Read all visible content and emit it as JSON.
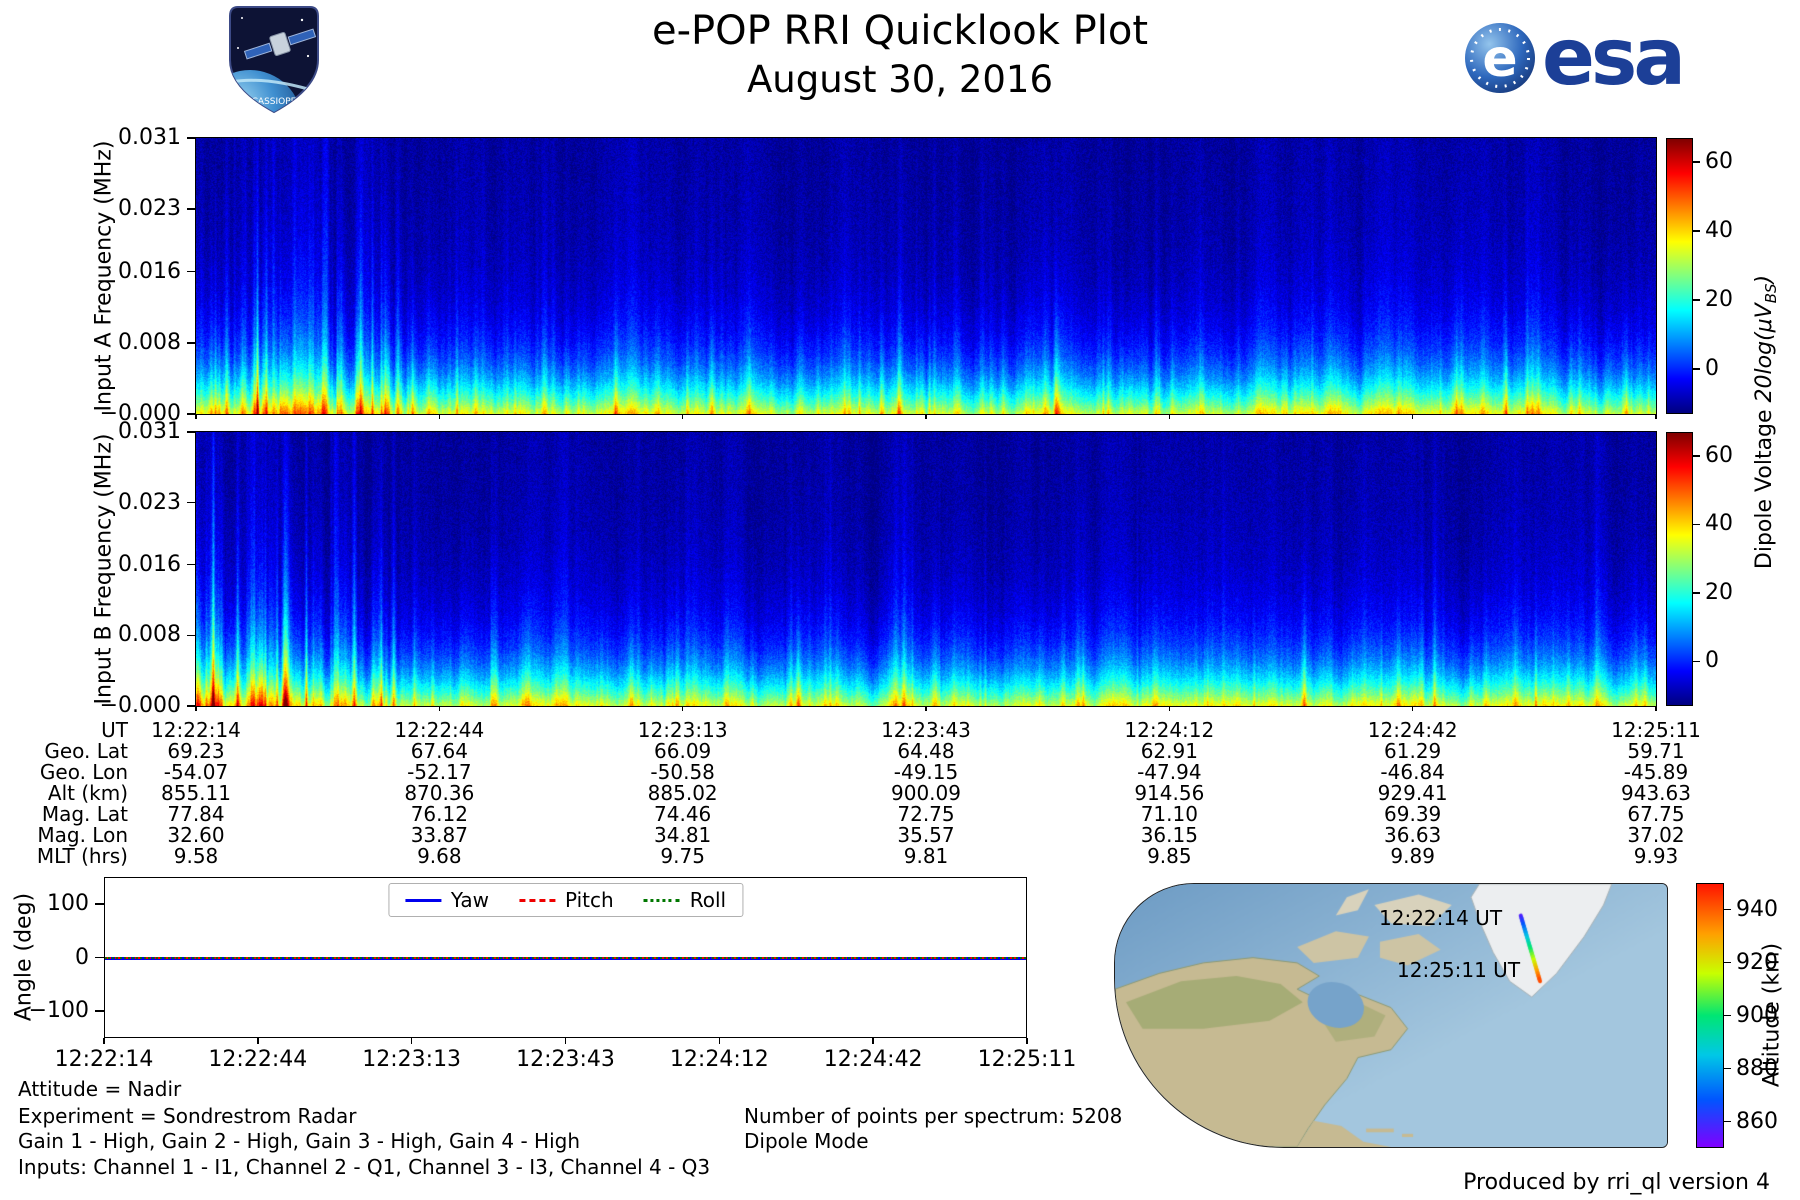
{
  "header": {
    "title": "e-POP RRI Quicklook Plot",
    "date": "August 30, 2016",
    "cassiope_patch_text": "CASSIOPE",
    "esa_emblem_letter": "e",
    "esa_wordmark": "esa"
  },
  "labels": {
    "dipole": {
      "full": "Dipole Voltage 20log(μVBS)",
      "prefix": "Dipole Voltage ",
      "math": "20log(μV",
      "sub": "BS",
      "close": ")"
    }
  },
  "chart_data": [
    {
      "id": "input-a-spectrogram",
      "type": "heatmap",
      "ylabel": "Input A Frequency (MHz)",
      "yticks": [
        "0.031",
        "0.023",
        "0.016",
        "0.008",
        "−0.000"
      ],
      "ylim_mhz": [
        0,
        0.031
      ],
      "xlim_ut": [
        "12:22:14",
        "12:25:11"
      ],
      "colormap": "jet",
      "colorbar_label": "Dipole Voltage 20log(μVBS)",
      "colorbar_ticks": [
        60,
        40,
        20,
        0
      ],
      "clim": [
        -13,
        67
      ],
      "signal_summary": "Strong broadband signal (~20-35, green) below ~0.004 MHz along the entire pass, fading through blue to a dark (<0) background above ~0.012 MHz; brighter teal vertical striations concentrated in the first ~15% of the record with sparse narrow blue streaks reaching higher frequencies"
    },
    {
      "id": "input-b-spectrogram",
      "type": "heatmap",
      "ylabel": "Input B Frequency (MHz)",
      "yticks": [
        "0.031",
        "0.023",
        "0.016",
        "0.008",
        "−0.000"
      ],
      "ylim_mhz": [
        0,
        0.031
      ],
      "xlim_ut": [
        "12:22:14",
        "12:25:11"
      ],
      "colormap": "jet",
      "colorbar_label": "Dipole Voltage 20log(μVBS)",
      "colorbar_ticks": [
        60,
        40,
        20,
        0
      ],
      "clim": [
        -13,
        67
      ],
      "signal_summary": "Same morphology as Input A: green low-frequency band, blue mid band, dark upper band, vertical striations strongest near the start of the pass"
    },
    {
      "id": "attitude-angles",
      "type": "line",
      "ylabel": "Angle (deg)",
      "yticks": [
        "100",
        "0",
        "−100"
      ],
      "ylim": [
        -150,
        150
      ],
      "x_ticklabels": [
        "12:22:14",
        "12:22:44",
        "12:23:13",
        "12:23:43",
        "12:24:12",
        "12:24:42",
        "12:25:11"
      ],
      "legend_position": "upper center",
      "series": [
        {
          "name": "Yaw",
          "color": "#0000ee",
          "style": "solid",
          "values": [
            0,
            0,
            0,
            0,
            0,
            0,
            0
          ]
        },
        {
          "name": "Pitch",
          "color": "#ee0000",
          "style": "dashed",
          "values": [
            0,
            0,
            0,
            0,
            0,
            0,
            0
          ]
        },
        {
          "name": "Roll",
          "color": "#007700",
          "style": "dotted",
          "values": [
            0,
            0,
            0,
            0,
            0,
            0,
            0
          ]
        }
      ]
    },
    {
      "id": "ground-track-map",
      "type": "map",
      "region": "North America, Canadian Arctic and Greenland",
      "track_labels": [
        "12:22:14 UT",
        "12:25:11 UT"
      ],
      "track_location": "short southeast-bound satellite track along the west coast of Greenland",
      "colormap": "rainbow",
      "colorbar_label": "Altitude (km)",
      "colorbar_ticks": [
        940,
        920,
        900,
        880,
        860
      ],
      "clim": [
        850,
        950
      ],
      "track_altitude_km": [
        855.11,
        943.63
      ]
    }
  ],
  "ephemeris": {
    "rows": [
      {
        "label": "UT",
        "values": [
          "12:22:14",
          "12:22:44",
          "12:23:13",
          "12:23:43",
          "12:24:12",
          "12:24:42",
          "12:25:11"
        ]
      },
      {
        "label": "Geo. Lat",
        "values": [
          "69.23",
          "67.64",
          "66.09",
          "64.48",
          "62.91",
          "61.29",
          "59.71"
        ]
      },
      {
        "label": "Geo. Lon",
        "values": [
          "-54.07",
          "-52.17",
          "-50.58",
          "-49.15",
          "-47.94",
          "-46.84",
          "-45.89"
        ]
      },
      {
        "label": "Alt (km)",
        "values": [
          "855.11",
          "870.36",
          "885.02",
          "900.09",
          "914.56",
          "929.41",
          "943.63"
        ]
      },
      {
        "label": "Mag. Lat",
        "values": [
          "77.84",
          "76.12",
          "74.46",
          "72.75",
          "71.10",
          "69.39",
          "67.75"
        ]
      },
      {
        "label": "Mag. Lon",
        "values": [
          "32.60",
          "33.87",
          "34.81",
          "35.57",
          "36.15",
          "36.63",
          "37.02"
        ]
      },
      {
        "label": "MLT (hrs)",
        "values": [
          "9.58",
          "9.68",
          "9.75",
          "9.81",
          "9.85",
          "9.89",
          "9.93"
        ]
      }
    ]
  },
  "annotations": {
    "attitude": "Attitude = Nadir",
    "experiment": "Experiment = Sondrestrom Radar",
    "gains": "Gain 1 - High, Gain 2 - High, Gain 3 - High, Gain 4 - High",
    "inputs": "Inputs: Channel 1 - I1, Channel 2 - Q1, Channel 3 - I3, Channel 4 - Q3",
    "points_per_spectrum": "Number of points per spectrum: 5208",
    "mode": "Dipole Mode",
    "produced_by": "Produced by rri_ql version 4"
  }
}
